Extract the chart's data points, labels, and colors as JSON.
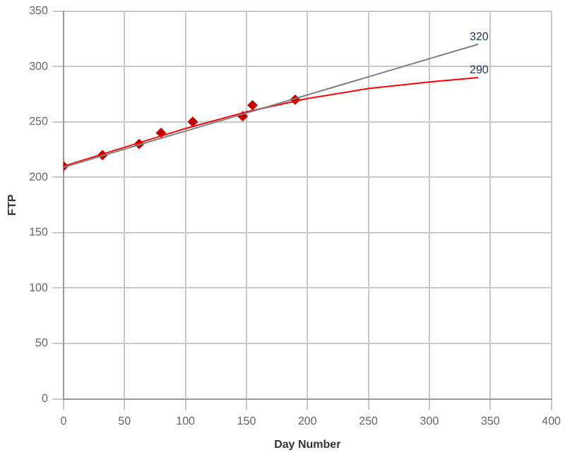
{
  "chart_data": {
    "type": "scatter",
    "xlabel": "Day Number",
    "ylabel": "FTP",
    "xlim": [
      0,
      400
    ],
    "xticks": [
      0,
      50,
      100,
      150,
      200,
      250,
      300,
      350,
      400
    ],
    "ylim": [
      0,
      350
    ],
    "yticks": [
      0,
      50,
      100,
      150,
      200,
      250,
      300,
      350
    ],
    "grid": true,
    "legend": false,
    "series": [
      {
        "type": "line",
        "color": "#808080",
        "marker": "none",
        "x": [
          0,
          340
        ],
        "values": [
          209,
          320
        ]
      },
      {
        "type": "line",
        "color": "#ff0000",
        "marker": "none",
        "x": [
          0,
          50,
          100,
          150,
          200,
          250,
          300,
          340
        ],
        "values": [
          210,
          227,
          244,
          259,
          271,
          280,
          286,
          290
        ]
      },
      {
        "color": "#c00000",
        "marker": "diamond",
        "x": [
          0,
          32,
          62,
          80,
          106,
          147,
          155,
          190
        ],
        "values": [
          210,
          220,
          230,
          240,
          250,
          255,
          265,
          270
        ]
      }
    ],
    "annotations": [
      {
        "text": "320",
        "x": 340,
        "y": 320
      },
      {
        "text": "290",
        "x": 340,
        "y": 290
      }
    ]
  }
}
